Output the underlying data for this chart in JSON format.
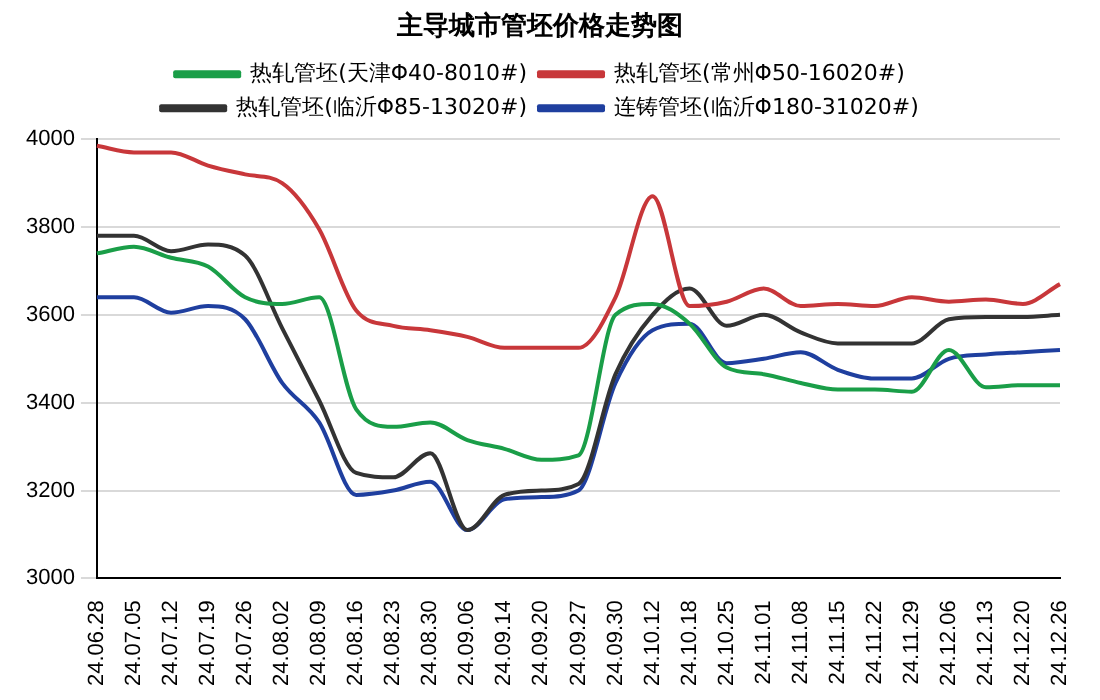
{
  "chart_data": {
    "type": "line",
    "title": "主导城市管坯价格走势图",
    "categories": [
      "24.06.28",
      "24.07.05",
      "24.07.12",
      "24.07.19",
      "24.07.26",
      "24.08.02",
      "24.08.09",
      "24.08.16",
      "24.08.23",
      "24.08.30",
      "24.09.06",
      "24.09.14",
      "24.09.20",
      "24.09.27",
      "24.09.30",
      "24.10.12",
      "24.10.18",
      "24.10.25",
      "24.11.01",
      "24.11.08",
      "24.11.15",
      "24.11.22",
      "24.11.29",
      "24.12.06",
      "24.12.13",
      "24.12.20",
      "24.12.26"
    ],
    "series": [
      {
        "name": "热轧管坯(天津Φ40-8010#)",
        "color": "#1a9e48",
        "values": [
          3740,
          3755,
          3730,
          3710,
          3640,
          3625,
          3640,
          3385,
          3345,
          3355,
          3315,
          3295,
          3270,
          3280,
          3600,
          3625,
          3580,
          3480,
          3465,
          3445,
          3430,
          3430,
          3425,
          3520,
          3435,
          3440,
          3440
        ]
      },
      {
        "name": "热轧管坯(常州Φ50-16020#)",
        "color": "#c8373a",
        "values": [
          3985,
          3970,
          3970,
          3940,
          3920,
          3900,
          3795,
          3610,
          3575,
          3565,
          3550,
          3525,
          3525,
          3525,
          3640,
          3870,
          3620,
          3630,
          3660,
          3620,
          3625,
          3620,
          3640,
          3630,
          3635,
          3625,
          3670
        ]
      },
      {
        "name": "热轧管坯(临沂Φ85-13020#)",
        "color": "#333333",
        "values": [
          3780,
          3780,
          3745,
          3760,
          3735,
          3570,
          3405,
          3240,
          3230,
          3285,
          3110,
          3190,
          3200,
          3215,
          3465,
          3600,
          3660,
          3575,
          3600,
          3560,
          3535,
          3535,
          3535,
          3590,
          3595,
          3595,
          3600
        ]
      },
      {
        "name": "连铸管坯(临沂Φ180-31020#)",
        "color": "#1f3f9f",
        "values": [
          3640,
          3640,
          3605,
          3620,
          3590,
          3445,
          3355,
          3190,
          3200,
          3220,
          3110,
          3180,
          3185,
          3200,
          3445,
          3565,
          3580,
          3490,
          3500,
          3515,
          3475,
          3455,
          3455,
          3500,
          3510,
          3515,
          3520
        ]
      }
    ],
    "ylim": [
      3000,
      4000
    ],
    "yticks": [
      3000,
      3200,
      3400,
      3600,
      3800,
      4000
    ],
    "grid": "y",
    "legend": "top",
    "marker": "none",
    "line_style": "solid"
  }
}
